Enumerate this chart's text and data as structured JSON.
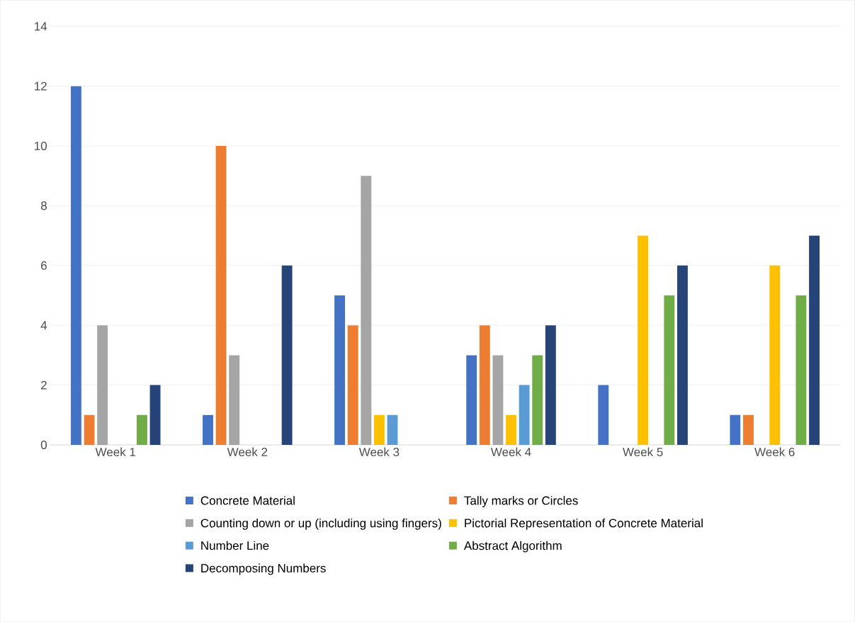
{
  "chart_data": {
    "type": "bar",
    "categories": [
      "Week 1",
      "Week 2",
      "Week 3",
      "Week 4",
      "Week 5",
      "Week 6"
    ],
    "series": [
      {
        "name": "Concrete Material",
        "color": "#4472c4",
        "values": [
          12,
          1,
          5,
          3,
          2,
          1
        ]
      },
      {
        "name": "Tally marks or Circles",
        "color": "#ed7d31",
        "values": [
          1,
          10,
          4,
          4,
          0,
          1
        ]
      },
      {
        "name": "Counting down or up  (including using fingers)",
        "color": "#a5a5a5",
        "values": [
          4,
          3,
          9,
          3,
          0,
          0
        ]
      },
      {
        "name": "Pictorial Representation of Concrete Material",
        "color": "#ffc000",
        "values": [
          0,
          0,
          1,
          1,
          7,
          6
        ]
      },
      {
        "name": "Number Line",
        "color": "#5b9bd5",
        "values": [
          0,
          0,
          1,
          2,
          0,
          0
        ]
      },
      {
        "name": "Abstract Algorithm",
        "color": "#70ad47",
        "values": [
          1,
          0,
          0,
          3,
          5,
          5
        ]
      },
      {
        "name": "Decomposing Numbers",
        "color": "#264478",
        "values": [
          2,
          6,
          0,
          4,
          6,
          7
        ]
      }
    ],
    "ylim": [
      0,
      14
    ],
    "yticks": [
      0,
      2,
      4,
      6,
      8,
      10,
      12,
      14
    ],
    "grid": "y",
    "legend": "bottom"
  }
}
